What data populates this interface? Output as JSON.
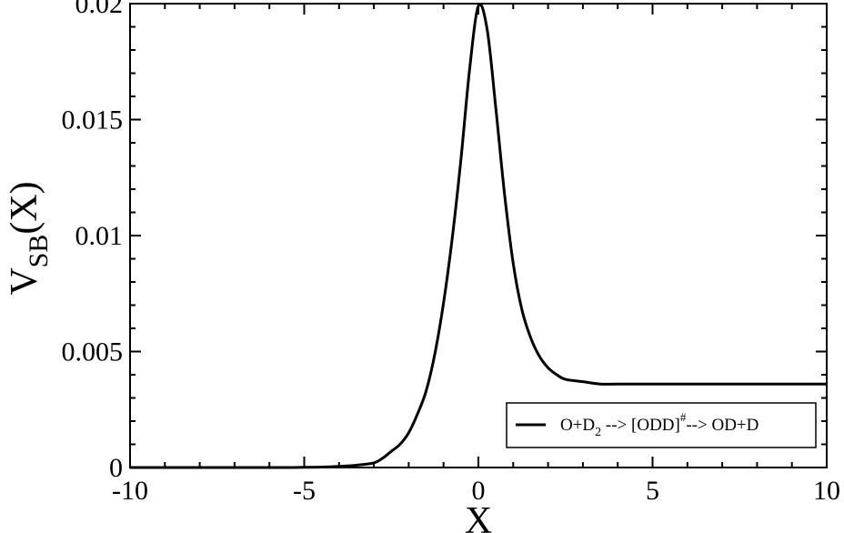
{
  "chart_data": {
    "type": "line",
    "xlabel": "X",
    "ylabel": {
      "main": "V",
      "sub": "SB",
      "tail": "(X)"
    },
    "xlim": [
      -10,
      10
    ],
    "ylim": [
      0,
      0.02
    ],
    "x_ticks": [
      -10,
      -5,
      0,
      5,
      10
    ],
    "x_tick_labels": [
      "-10",
      "-5",
      "0",
      "5",
      "10"
    ],
    "y_ticks": [
      0,
      0.005,
      0.01,
      0.015,
      0.02
    ],
    "y_tick_labels": [
      "0",
      "0.005",
      "0.01",
      "0.015",
      "0.02"
    ],
    "grid": false,
    "legend_position": "bottom-right",
    "series": [
      {
        "name": "O+D2--> [ODD]#--> OD+D",
        "color": "#000000",
        "points": [
          [
            -10,
            0
          ],
          [
            -6,
            0
          ],
          [
            -5,
            1e-05
          ],
          [
            -4.5,
            2e-05
          ],
          [
            -4,
            5e-05
          ],
          [
            -3.5,
            0.0001
          ],
          [
            -3,
            0.0002
          ],
          [
            -2.75,
            0.0004
          ],
          [
            -2.5,
            0.0007
          ],
          [
            -2.25,
            0.001
          ],
          [
            -2,
            0.0015
          ],
          [
            -1.75,
            0.0023
          ],
          [
            -1.5,
            0.0033
          ],
          [
            -1.25,
            0.0049
          ],
          [
            -1,
            0.0071
          ],
          [
            -0.75,
            0.0099
          ],
          [
            -0.5,
            0.0133
          ],
          [
            -0.25,
            0.0172
          ],
          [
            0,
            0.0199
          ],
          [
            0.25,
            0.0189
          ],
          [
            0.5,
            0.0155
          ],
          [
            0.75,
            0.0118
          ],
          [
            1,
            0.0088
          ],
          [
            1.25,
            0.0068
          ],
          [
            1.5,
            0.0056
          ],
          [
            1.75,
            0.0048
          ],
          [
            2,
            0.0043
          ],
          [
            2.25,
            0.004
          ],
          [
            2.5,
            0.0038
          ],
          [
            3,
            0.0037
          ],
          [
            3.5,
            0.0036
          ],
          [
            4,
            0.0036
          ],
          [
            5,
            0.0036
          ],
          [
            10,
            0.0036
          ]
        ]
      }
    ],
    "legend": {
      "pre": "O+D",
      "sub": "2",
      "mid": " --> [ODD]",
      "sup": "#",
      "post": "--> OD+D"
    }
  }
}
